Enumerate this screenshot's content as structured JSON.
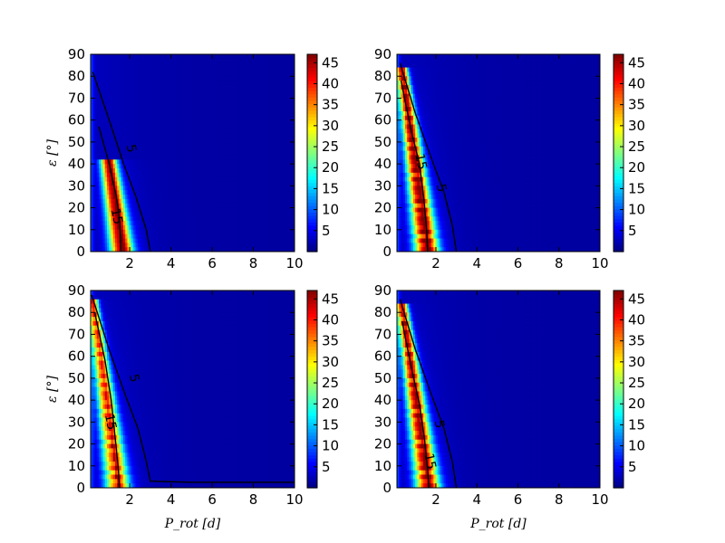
{
  "chart_data": [
    {
      "type": "heatmap",
      "panel": "top-left",
      "xlabel": "",
      "ylabel": "ε [°]",
      "xlim": [
        0.1,
        10
      ],
      "ylim": [
        0,
        90
      ],
      "xticks": [
        "2",
        "4",
        "6",
        "8",
        "10"
      ],
      "yticks": [
        "0",
        "10",
        "20",
        "30",
        "40",
        "50",
        "60",
        "70",
        "80",
        "90"
      ],
      "colorbar": {
        "min": 0,
        "max": 47,
        "ticks": [
          "5",
          "10",
          "15",
          "20",
          "25",
          "30",
          "35",
          "40",
          "45"
        ]
      },
      "ridge": {
        "p_at_eps0": 1.6,
        "p_at_eps90": 0.2,
        "peak": 42,
        "width": 0.13,
        "max_eps": 42,
        "shape": "smooth"
      },
      "contours": [
        {
          "level": 5,
          "label": "5",
          "points": [
            [
              0.2,
              82
            ],
            [
              1.0,
              60
            ],
            [
              1.7,
              40
            ],
            [
              2.3,
              25
            ],
            [
              2.8,
              10
            ],
            [
              3.0,
              0
            ]
          ],
          "label_at": [
            2.05,
            47
          ]
        },
        {
          "level": 15,
          "label": "15",
          "points": [
            [
              0.5,
              57
            ],
            [
              1.0,
              40
            ],
            [
              1.35,
              25
            ],
            [
              1.5,
              15
            ],
            [
              1.55,
              5
            ],
            [
              1.55,
              0
            ]
          ],
          "label_at": [
            1.35,
            16
          ]
        }
      ]
    },
    {
      "type": "heatmap",
      "panel": "top-right",
      "xlabel": "",
      "ylabel": "",
      "xlim": [
        0.1,
        10
      ],
      "ylim": [
        0,
        90
      ],
      "xticks": [
        "2",
        "4",
        "6",
        "8",
        "10"
      ],
      "yticks": [
        "0",
        "10",
        "20",
        "30",
        "40",
        "50",
        "60",
        "70",
        "80",
        "90"
      ],
      "colorbar": {
        "min": 0,
        "max": 47,
        "ticks": [
          "5",
          "10",
          "15",
          "20",
          "25",
          "30",
          "35",
          "40",
          "45"
        ]
      },
      "ridge": {
        "p_at_eps0": 1.55,
        "p_at_eps90": 0.25,
        "peak": 46,
        "width": 0.16,
        "max_eps": 84,
        "shape": "stepped"
      },
      "contours": [
        {
          "level": 5,
          "label": "5",
          "points": [
            [
              0.25,
              86
            ],
            [
              1.0,
              63
            ],
            [
              1.8,
              42
            ],
            [
              2.4,
              27
            ],
            [
              2.8,
              12
            ],
            [
              3.0,
              0
            ]
          ],
          "label_at": [
            2.25,
            29
          ]
        },
        {
          "level": 15,
          "label": "15",
          "points": [
            [
              0.3,
              78
            ],
            [
              0.8,
              55
            ],
            [
              1.2,
              40
            ],
            [
              1.4,
              25
            ],
            [
              1.55,
              10
            ],
            [
              1.6,
              0
            ]
          ],
          "label_at": [
            1.25,
            41
          ]
        }
      ]
    },
    {
      "type": "heatmap",
      "panel": "bottom-left",
      "xlabel": "P_rot [d]",
      "ylabel": "ε [°]",
      "xlim": [
        0.1,
        10
      ],
      "ylim": [
        0,
        90
      ],
      "xticks": [
        "2",
        "4",
        "6",
        "8",
        "10"
      ],
      "yticks": [
        "0",
        "10",
        "20",
        "30",
        "40",
        "50",
        "60",
        "70",
        "80",
        "90"
      ],
      "colorbar": {
        "min": 0,
        "max": 47,
        "ticks": [
          "5",
          "10",
          "15",
          "20",
          "25",
          "30",
          "35",
          "40",
          "45"
        ]
      },
      "ridge": {
        "p_at_eps0": 1.4,
        "p_at_eps90": 0.15,
        "peak": 38,
        "width": 0.15,
        "max_eps": 86,
        "shape": "stepped"
      },
      "contours": [
        {
          "level": 5,
          "label": "5",
          "points": [
            [
              0.15,
              88
            ],
            [
              1.0,
              63
            ],
            [
              1.8,
              42
            ],
            [
              2.4,
              27
            ],
            [
              2.8,
              12
            ],
            [
              3.0,
              3
            ],
            [
              5.0,
              2.5
            ],
            [
              10.0,
              2.5
            ]
          ],
          "label_at": [
            2.2,
            50
          ]
        },
        {
          "level": 15,
          "label": "15",
          "points": [
            [
              0.3,
              80
            ],
            [
              0.8,
              58
            ],
            [
              1.1,
              40
            ],
            [
              1.3,
              22
            ],
            [
              1.45,
              8
            ],
            [
              1.5,
              0
            ]
          ],
          "label_at": [
            1.05,
            30
          ]
        }
      ]
    },
    {
      "type": "heatmap",
      "panel": "bottom-right",
      "xlabel": "P_rot [d]",
      "ylabel": "",
      "xlim": [
        0.1,
        10
      ],
      "ylim": [
        0,
        90
      ],
      "xticks": [
        "2",
        "4",
        "6",
        "8",
        "10"
      ],
      "yticks": [
        "0",
        "10",
        "20",
        "30",
        "40",
        "50",
        "60",
        "70",
        "80",
        "90"
      ],
      "colorbar": {
        "min": 0,
        "max": 47,
        "ticks": [
          "5",
          "10",
          "15",
          "20",
          "25",
          "30",
          "35",
          "40",
          "45"
        ]
      },
      "ridge": {
        "p_at_eps0": 1.6,
        "p_at_eps90": 0.25,
        "peak": 44,
        "width": 0.16,
        "max_eps": 84,
        "shape": "stepped"
      },
      "contours": [
        {
          "level": 5,
          "label": "5",
          "points": [
            [
              0.25,
              86
            ],
            [
              1.0,
              63
            ],
            [
              1.8,
              42
            ],
            [
              2.4,
              27
            ],
            [
              2.8,
              12
            ],
            [
              3.0,
              0
            ]
          ],
          "label_at": [
            2.15,
            29
          ]
        },
        {
          "level": 15,
          "label": "15",
          "points": [
            [
              0.35,
              76
            ],
            [
              0.8,
              55
            ],
            [
              1.2,
              38
            ],
            [
              1.45,
              22
            ],
            [
              1.6,
              8
            ],
            [
              1.65,
              0
            ]
          ],
          "label_at": [
            1.7,
            12
          ]
        }
      ]
    }
  ]
}
